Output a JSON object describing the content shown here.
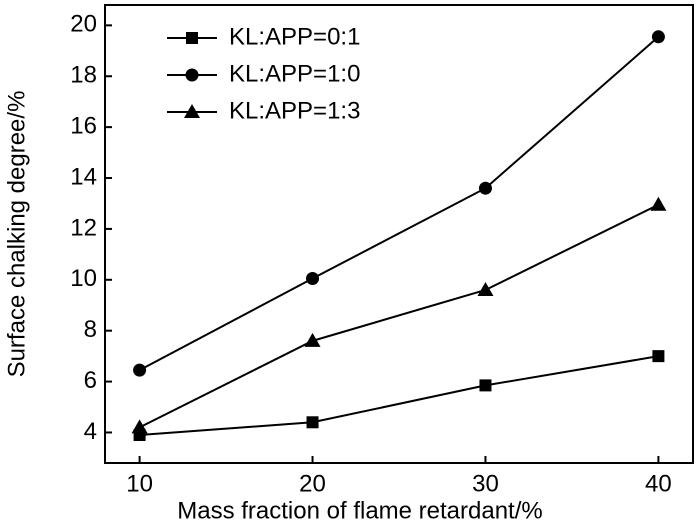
{
  "chart_data": {
    "type": "line",
    "xlabel": "Mass fraction of flame retardant/%",
    "ylabel": "Surface chalking degree/%",
    "x": [
      10,
      20,
      30,
      40
    ],
    "series": [
      {
        "name": "KL:APP=0:1",
        "color": "#000000",
        "marker": "square",
        "values": [
          3.9,
          4.4,
          5.85,
          7.0
        ]
      },
      {
        "name": "KL:APP=1:0",
        "color": "#000000",
        "marker": "circle",
        "values": [
          6.45,
          10.05,
          13.6,
          19.55
        ]
      },
      {
        "name": "KL:APP=1:3",
        "color": "#000000",
        "marker": "triangle",
        "values": [
          4.2,
          7.6,
          9.6,
          12.95
        ]
      }
    ],
    "xlim": [
      8,
      42
    ],
    "xticks": [
      10,
      20,
      30,
      40
    ],
    "ylim": [
      2.8,
      20.8
    ],
    "yticks": [
      4,
      6,
      8,
      10,
      12,
      14,
      16,
      18,
      20
    ],
    "legend": "upper-left",
    "grid": false
  }
}
